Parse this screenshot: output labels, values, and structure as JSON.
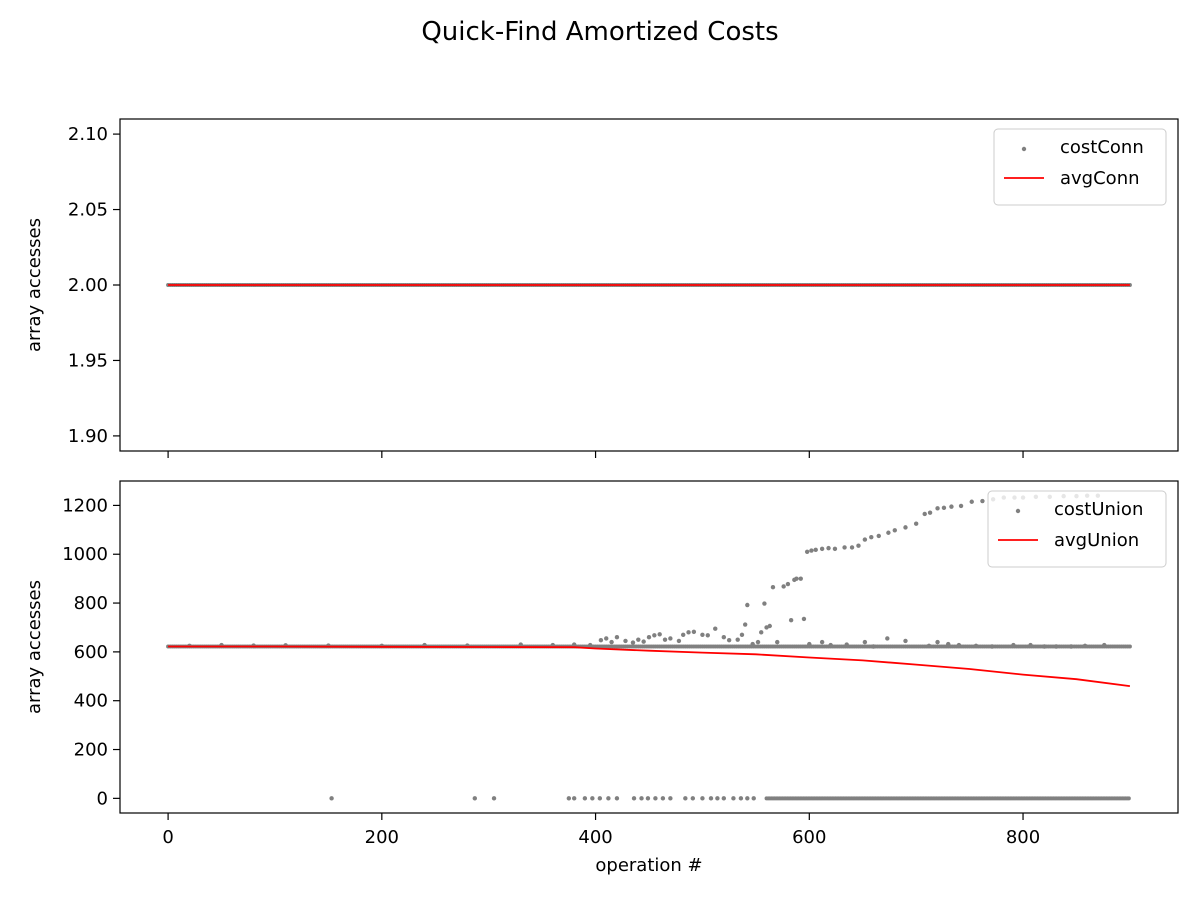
{
  "figure_title": "Quick-Find Amortized Costs",
  "colors": {
    "scatter": "#808080",
    "avg_line": "#ff0000",
    "axes": "#000000"
  },
  "chart_data": [
    {
      "type": "scatter",
      "title": "",
      "xlabel": "",
      "ylabel": "array accesses",
      "xlim": [
        -45,
        945
      ],
      "ylim": [
        1.89,
        2.11
      ],
      "xticks": [
        0,
        200,
        400,
        600,
        800
      ],
      "xtick_labels_visible": false,
      "yticks": [
        1.9,
        1.95,
        2.0,
        2.05,
        2.1
      ],
      "ytick_labels": [
        "1.90",
        "1.95",
        "2.00",
        "2.05",
        "2.10"
      ],
      "grid": false,
      "legend_position": "top-right",
      "series": [
        {
          "name": "costConn",
          "kind": "scatter",
          "constant": 2.0,
          "x_range": [
            0,
            900
          ]
        },
        {
          "name": "avgConn",
          "kind": "line",
          "points": [
            [
              0,
              2.0
            ],
            [
              900,
              2.0
            ]
          ]
        }
      ]
    },
    {
      "type": "scatter",
      "title": "",
      "xlabel": "operation #",
      "ylabel": "array accesses",
      "xlim": [
        -45,
        945
      ],
      "ylim": [
        -60,
        1300
      ],
      "xticks": [
        0,
        200,
        400,
        600,
        800
      ],
      "xtick_labels": [
        "0",
        "200",
        "400",
        "600",
        "800"
      ],
      "yticks": [
        0,
        200,
        400,
        600,
        800,
        1000,
        1200
      ],
      "ytick_labels": [
        "0",
        "200",
        "400",
        "600",
        "800",
        "1000",
        "1200"
      ],
      "grid": false,
      "legend_position": "top-right",
      "series": [
        {
          "name": "costUnion",
          "kind": "scatter",
          "baseline_value": 622,
          "baseline_x_range": [
            0,
            900
          ],
          "points": [
            [
              20,
              625
            ],
            [
              50,
              628
            ],
            [
              80,
              626
            ],
            [
              110,
              627
            ],
            [
              150,
              626
            ],
            [
              200,
              625
            ],
            [
              240,
              628
            ],
            [
              280,
              626
            ],
            [
              330,
              630
            ],
            [
              360,
              628
            ],
            [
              380,
              630
            ],
            [
              395,
              628
            ],
            [
              405,
              648
            ],
            [
              410,
              655
            ],
            [
              415,
              640
            ],
            [
              420,
              660
            ],
            [
              428,
              645
            ],
            [
              435,
              638
            ],
            [
              440,
              650
            ],
            [
              445,
              642
            ],
            [
              450,
              660
            ],
            [
              455,
              668
            ],
            [
              460,
              672
            ],
            [
              465,
              650
            ],
            [
              470,
              655
            ],
            [
              478,
              645
            ],
            [
              482,
              670
            ],
            [
              487,
              680
            ],
            [
              492,
              682
            ],
            [
              500,
              670
            ],
            [
              505,
              668
            ],
            [
              512,
              695
            ],
            [
              520,
              660
            ],
            [
              525,
              648
            ],
            [
              533,
              650
            ],
            [
              537,
              670
            ],
            [
              540,
              712
            ],
            [
              542,
              792
            ],
            [
              547,
              632
            ],
            [
              552,
              640
            ],
            [
              555,
              680
            ],
            [
              558,
              798
            ],
            [
              560,
              700
            ],
            [
              563,
              706
            ],
            [
              566,
              865
            ],
            [
              570,
              640
            ],
            [
              576,
              868
            ],
            [
              580,
              878
            ],
            [
              583,
              730
            ],
            [
              586,
              895
            ],
            [
              588,
              900
            ],
            [
              592,
              900
            ],
            [
              595,
              735
            ],
            [
              598,
              1010
            ],
            [
              602,
              1015
            ],
            [
              606,
              1018
            ],
            [
              612,
              1022
            ],
            [
              618,
              1025
            ],
            [
              624,
              1022
            ],
            [
              633,
              1028
            ],
            [
              640,
              1028
            ],
            [
              646,
              1035
            ],
            [
              652,
              1060
            ],
            [
              658,
              1070
            ],
            [
              665,
              1075
            ],
            [
              674,
              1088
            ],
            [
              680,
              1098
            ],
            [
              690,
              1110
            ],
            [
              700,
              1125
            ],
            [
              708,
              1165
            ],
            [
              713,
              1170
            ],
            [
              720,
              1188
            ],
            [
              726,
              1190
            ],
            [
              733,
              1195
            ],
            [
              742,
              1198
            ],
            [
              752,
              1215
            ],
            [
              762,
              1218
            ],
            [
              772,
              1225
            ],
            [
              782,
              1232
            ],
            [
              792,
              1232
            ],
            [
              800,
              1232
            ],
            [
              812,
              1235
            ],
            [
              825,
              1235
            ],
            [
              838,
              1238
            ],
            [
              850,
              1238
            ],
            [
              860,
              1240
            ],
            [
              870,
              1240
            ],
            [
              600,
              632
            ],
            [
              612,
              640
            ],
            [
              620,
              628
            ],
            [
              635,
              630
            ],
            [
              652,
              640
            ],
            [
              660,
              622
            ],
            [
              673,
              655
            ],
            [
              690,
              645
            ],
            [
              712,
              625
            ],
            [
              720,
              640
            ],
            [
              730,
              632
            ],
            [
              740,
              628
            ],
            [
              756,
              625
            ],
            [
              771,
              622
            ],
            [
              791,
              628
            ],
            [
              807,
              628
            ],
            [
              820,
              622
            ],
            [
              831,
              622
            ],
            [
              845,
              622
            ],
            [
              858,
              625
            ],
            [
              876,
              628
            ],
            [
              153,
              0
            ],
            [
              287,
              0
            ],
            [
              305,
              0
            ],
            [
              375,
              0
            ],
            [
              380,
              0
            ],
            [
              390,
              0
            ],
            [
              397,
              0
            ],
            [
              404,
              0
            ],
            [
              412,
              0
            ],
            [
              420,
              0
            ],
            [
              436,
              0
            ],
            [
              443,
              0
            ],
            [
              449,
              0
            ],
            [
              456,
              0
            ],
            [
              463,
              0
            ],
            [
              470,
              0
            ],
            [
              484,
              0
            ],
            [
              491,
              0
            ],
            [
              500,
              0
            ],
            [
              508,
              0
            ],
            [
              514,
              0
            ],
            [
              520,
              0
            ],
            [
              529,
              0
            ],
            [
              536,
              0
            ],
            [
              542,
              0
            ],
            [
              548,
              0
            ]
          ],
          "dense_zero_range": [
            560,
            900
          ]
        },
        {
          "name": "avgUnion",
          "kind": "line",
          "points": [
            [
              0,
              622
            ],
            [
              100,
              622
            ],
            [
              200,
              621
            ],
            [
              300,
              620
            ],
            [
              380,
              619
            ],
            [
              400,
              614
            ],
            [
              450,
              605
            ],
            [
              500,
              597
            ],
            [
              550,
              590
            ],
            [
              600,
              577
            ],
            [
              650,
              565
            ],
            [
              700,
              548
            ],
            [
              750,
              530
            ],
            [
              800,
              507
            ],
            [
              850,
              488
            ],
            [
              900,
              460
            ]
          ]
        }
      ]
    }
  ]
}
